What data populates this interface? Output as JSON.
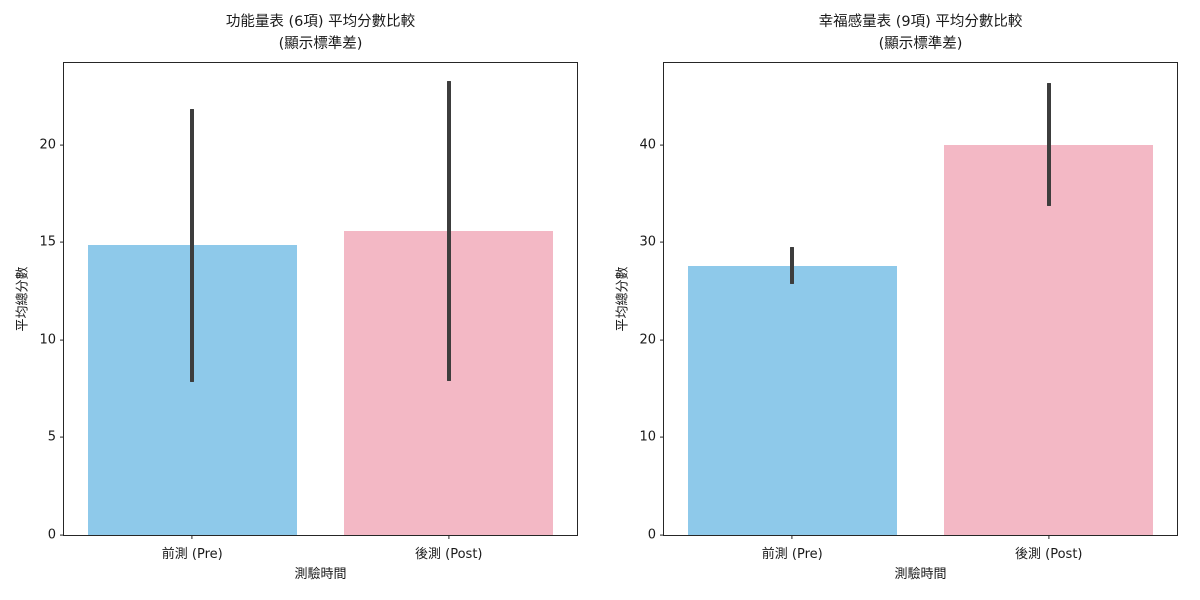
{
  "figure": {
    "background": "#ffffff",
    "text_color": "#1a1a1a"
  },
  "chart_data": [
    {
      "type": "bar",
      "title": "功能量表 (6項) 平均分數比較",
      "subtitle": "(顯示標準差)",
      "xlabel": "測驗時間",
      "ylabel": "平均總分數",
      "categories": [
        "前測 (Pre)",
        "後測 (Post)"
      ],
      "values": [
        14.85,
        15.6
      ],
      "errors": [
        7.0,
        7.7
      ],
      "yticks": [
        0,
        5,
        10,
        15,
        20
      ],
      "ylim": [
        0,
        24.2
      ],
      "bar_colors": [
        "#8ec9ea",
        "#f3b8c5"
      ],
      "error_color": "#3d3d3d",
      "bar_width_frac": 0.408,
      "legend": "none",
      "grid": false
    },
    {
      "type": "bar",
      "title": "幸福感量表 (9項) 平均分數比較",
      "subtitle": "(顯示標準差)",
      "xlabel": "測驗時間",
      "ylabel": "平均總分數",
      "categories": [
        "前測 (Pre)",
        "後測 (Post)"
      ],
      "values": [
        27.6,
        40.0
      ],
      "errors": [
        1.9,
        6.3
      ],
      "yticks": [
        0,
        10,
        20,
        30,
        40
      ],
      "ylim": [
        0,
        48.4
      ],
      "bar_colors": [
        "#8ec9ea",
        "#f3b8c5"
      ],
      "error_color": "#3d3d3d",
      "bar_width_frac": 0.408,
      "legend": "none",
      "grid": false
    }
  ]
}
